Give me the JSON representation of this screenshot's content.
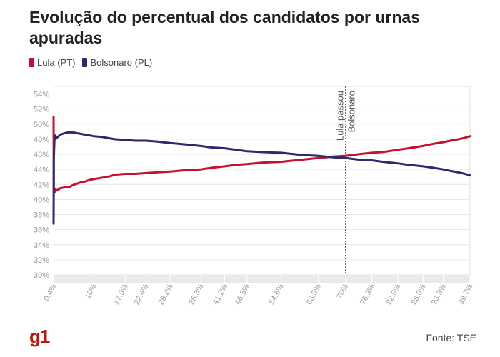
{
  "title": "Evolução do percentual dos candidatos por urnas apuradas",
  "legend": [
    {
      "label": "Lula (PT)",
      "color": "#c8102e"
    },
    {
      "label": "Bolsonaro (PL)",
      "color": "#2a2a6c"
    }
  ],
  "annotation": {
    "line1": "Lula passou",
    "line2": "Bolsonaro",
    "x": 70
  },
  "logo": "g1",
  "source": "Fonte: TSE",
  "chart_data": {
    "type": "line",
    "title": "Evolução do percentual dos candidatos por urnas apuradas",
    "xlabel": "",
    "ylabel": "",
    "xlim": [
      0.4,
      99.7
    ],
    "ylim": [
      30,
      55
    ],
    "grid": true,
    "legend_position": "top-left",
    "x_ticks": [
      {
        "value": 0.4,
        "label": "0.4%"
      },
      {
        "value": 10,
        "label": "10%"
      },
      {
        "value": 17.5,
        "label": "17.5%"
      },
      {
        "value": 22.4,
        "label": "22.4%"
      },
      {
        "value": 28.2,
        "label": "28.2%"
      },
      {
        "value": 35.5,
        "label": "35.5%"
      },
      {
        "value": 41.2,
        "label": "41.2%"
      },
      {
        "value": 46.5,
        "label": "46.5%"
      },
      {
        "value": 54.6,
        "label": "54.6%"
      },
      {
        "value": 63.5,
        "label": "63.5%"
      },
      {
        "value": 70,
        "label": "70%"
      },
      {
        "value": 76.3,
        "label": "76.3%"
      },
      {
        "value": 82.5,
        "label": "82.5%"
      },
      {
        "value": 88.5,
        "label": "88.5%"
      },
      {
        "value": 93.3,
        "label": "93.3%"
      },
      {
        "value": 99.7,
        "label": "99.7%"
      }
    ],
    "y_ticks": [
      {
        "value": 30,
        "label": "30%"
      },
      {
        "value": 32,
        "label": "32%"
      },
      {
        "value": 34,
        "label": "34%"
      },
      {
        "value": 36,
        "label": "36%"
      },
      {
        "value": 38,
        "label": "38%"
      },
      {
        "value": 40,
        "label": "40%"
      },
      {
        "value": 42,
        "label": "42%"
      },
      {
        "value": 44,
        "label": "44%"
      },
      {
        "value": 46,
        "label": "46%"
      },
      {
        "value": 48,
        "label": "48%"
      },
      {
        "value": 50,
        "label": "50%"
      },
      {
        "value": 52,
        "label": "52%"
      },
      {
        "value": 54,
        "label": "54%"
      }
    ],
    "series": [
      {
        "name": "Lula (PT)",
        "color": "#c8102e",
        "points": [
          [
            0.4,
            51.0
          ],
          [
            0.45,
            41.0
          ],
          [
            0.6,
            40.9
          ],
          [
            0.8,
            41.4
          ],
          [
            1.2,
            41.2
          ],
          [
            2,
            41.5
          ],
          [
            3,
            41.6
          ],
          [
            4,
            41.6
          ],
          [
            5,
            41.9
          ],
          [
            6,
            42.1
          ],
          [
            7,
            42.3
          ],
          [
            8,
            42.4
          ],
          [
            9,
            42.6
          ],
          [
            10,
            42.7
          ],
          [
            12,
            42.9
          ],
          [
            14,
            43.1
          ],
          [
            15,
            43.3
          ],
          [
            17.5,
            43.4
          ],
          [
            20,
            43.4
          ],
          [
            22.4,
            43.5
          ],
          [
            25,
            43.6
          ],
          [
            28.2,
            43.7
          ],
          [
            32,
            43.9
          ],
          [
            35.5,
            44.0
          ],
          [
            38,
            44.2
          ],
          [
            41.2,
            44.4
          ],
          [
            44,
            44.6
          ],
          [
            46.5,
            44.7
          ],
          [
            50,
            44.9
          ],
          [
            54.6,
            45.0
          ],
          [
            58,
            45.2
          ],
          [
            60,
            45.3
          ],
          [
            63.5,
            45.5
          ],
          [
            67,
            45.7
          ],
          [
            70,
            45.8
          ],
          [
            73,
            46.0
          ],
          [
            76.3,
            46.2
          ],
          [
            79,
            46.3
          ],
          [
            82.5,
            46.6
          ],
          [
            85,
            46.8
          ],
          [
            88.5,
            47.1
          ],
          [
            91,
            47.4
          ],
          [
            93.3,
            47.6
          ],
          [
            95,
            47.8
          ],
          [
            97,
            48.0
          ],
          [
            98.5,
            48.2
          ],
          [
            99.7,
            48.4
          ]
        ]
      },
      {
        "name": "Bolsonaro (PL)",
        "color": "#2a2a6c",
        "points": [
          [
            0.4,
            36.8
          ],
          [
            0.45,
            45.5
          ],
          [
            0.6,
            47.8
          ],
          [
            0.8,
            48.5
          ],
          [
            1.2,
            48.2
          ],
          [
            2,
            48.6
          ],
          [
            3,
            48.8
          ],
          [
            4,
            48.9
          ],
          [
            5,
            48.9
          ],
          [
            6,
            48.8
          ],
          [
            7,
            48.7
          ],
          [
            8,
            48.6
          ],
          [
            9,
            48.5
          ],
          [
            10,
            48.4
          ],
          [
            12,
            48.3
          ],
          [
            14,
            48.1
          ],
          [
            15,
            48.0
          ],
          [
            17.5,
            47.9
          ],
          [
            20,
            47.8
          ],
          [
            22.4,
            47.8
          ],
          [
            25,
            47.7
          ],
          [
            28.2,
            47.5
          ],
          [
            32,
            47.3
          ],
          [
            35.5,
            47.1
          ],
          [
            38,
            46.9
          ],
          [
            41.2,
            46.8
          ],
          [
            44,
            46.6
          ],
          [
            46.5,
            46.4
          ],
          [
            50,
            46.3
          ],
          [
            54.6,
            46.2
          ],
          [
            58,
            46.0
          ],
          [
            60,
            45.9
          ],
          [
            63.5,
            45.8
          ],
          [
            67,
            45.6
          ],
          [
            70,
            45.5
          ],
          [
            73,
            45.3
          ],
          [
            76.3,
            45.2
          ],
          [
            79,
            45.0
          ],
          [
            82.5,
            44.8
          ],
          [
            85,
            44.6
          ],
          [
            88.5,
            44.4
          ],
          [
            91,
            44.2
          ],
          [
            93.3,
            44.0
          ],
          [
            95,
            43.8
          ],
          [
            97,
            43.6
          ],
          [
            98.5,
            43.4
          ],
          [
            99.7,
            43.2
          ]
        ]
      }
    ]
  }
}
